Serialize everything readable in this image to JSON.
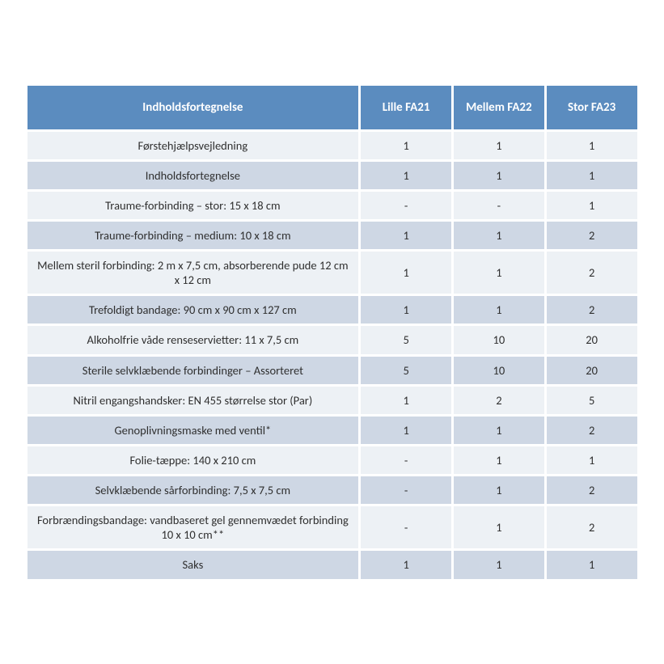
{
  "table": {
    "type": "table",
    "header_bg": "#5b8cbf",
    "header_fg": "#ffffff",
    "row_bg_even": "#edf1f5",
    "row_bg_odd": "#ced7e4",
    "text_color": "#2f2f2f",
    "font_family": "Calibri",
    "header_fontsize": 15,
    "cell_fontsize": 14.5,
    "border_spacing": 3,
    "columns": [
      {
        "label": "Indholdsfortegnelse",
        "width_pct": 55,
        "align": "center"
      },
      {
        "label": "Lille FA21",
        "width_pct": 15,
        "align": "center"
      },
      {
        "label": "Mellem FA22",
        "width_pct": 15,
        "align": "center"
      },
      {
        "label": "Stor FA23",
        "width_pct": 15,
        "align": "center"
      }
    ],
    "rows": [
      [
        "Førstehjælpsvejledning",
        "1",
        "1",
        "1"
      ],
      [
        "Indholdsfortegnelse",
        "1",
        "1",
        "1"
      ],
      [
        "Traume-forbinding – stor: 15 x 18 cm",
        "-",
        "-",
        "1"
      ],
      [
        "Traume-forbinding – medium: 10 x 18 cm",
        "1",
        "1",
        "2"
      ],
      [
        "Mellem steril forbinding: 2 m x 7,5 cm, absorberende pude 12 cm x 12 cm",
        "1",
        "1",
        "2"
      ],
      [
        "Trefoldigt bandage: 90 cm x 90 cm x 127 cm",
        "1",
        "1",
        "2"
      ],
      [
        "Alkoholfrie våde renseservietter: 11 x 7,5 cm",
        "5",
        "10",
        "20"
      ],
      [
        "Sterile selvklæbende forbindinger – Assorteret",
        "5",
        "10",
        "20"
      ],
      [
        "Nitril engangshandsker: EN 455 størrelse stor (Par)",
        "1",
        "2",
        "5"
      ],
      [
        "Genoplivningsmaske med ventil*",
        "1",
        "1",
        "2"
      ],
      [
        "Folie-tæppe: 140 x 210 cm",
        "-",
        "1",
        "1"
      ],
      [
        "Selvklæbende sårforbinding: 7,5 x 7,5 cm",
        "-",
        "1",
        "2"
      ],
      [
        "Forbrændingsbandage: vandbaseret gel gennemvædet forbinding 10 x 10 cm**",
        "-",
        "1",
        "2"
      ],
      [
        "Saks",
        "1",
        "1",
        "1"
      ]
    ]
  }
}
